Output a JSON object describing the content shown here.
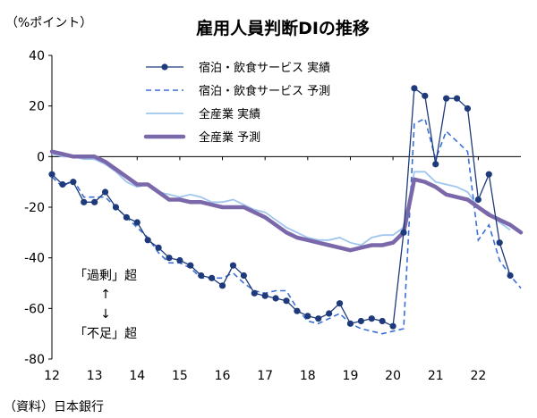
{
  "chart_data": {
    "type": "line",
    "title": "雇用人員判断DIの推移",
    "ylabel": "（%ポイント）",
    "source": "（資料）日本銀行",
    "ylim": [
      -80,
      40
    ],
    "yticks": [
      40,
      20,
      0,
      -20,
      -40,
      -60,
      -80
    ],
    "xlim": [
      2012,
      2023
    ],
    "xticks": [
      {
        "v": 2012,
        "label": "12"
      },
      {
        "v": 2013,
        "label": "13"
      },
      {
        "v": 2014,
        "label": "14"
      },
      {
        "v": 2015,
        "label": "15"
      },
      {
        "v": 2016,
        "label": "16"
      },
      {
        "v": 2017,
        "label": "17"
      },
      {
        "v": 2018,
        "label": "18"
      },
      {
        "v": 2019,
        "label": "19"
      },
      {
        "v": 2020,
        "label": "20"
      },
      {
        "v": 2021,
        "label": "21"
      },
      {
        "v": 2022,
        "label": "22"
      }
    ],
    "annotation": {
      "top": "「過剰」超",
      "arrow_up": "↑",
      "arrow_down": "↓",
      "bottom": "「不足」超"
    },
    "series": [
      {
        "name": "宿泊・飲食サービス 実績",
        "color": "#1f3a7a",
        "style": "marker",
        "x": [
          2012.0,
          2012.25,
          2012.5,
          2012.75,
          2013.0,
          2013.25,
          2013.5,
          2013.75,
          2014.0,
          2014.25,
          2014.5,
          2014.75,
          2015.0,
          2015.25,
          2015.5,
          2015.75,
          2016.0,
          2016.25,
          2016.5,
          2016.75,
          2017.0,
          2017.25,
          2017.5,
          2017.75,
          2018.0,
          2018.25,
          2018.5,
          2018.75,
          2019.0,
          2019.25,
          2019.5,
          2019.75,
          2020.0,
          2020.25,
          2020.5,
          2020.75,
          2021.0,
          2021.25,
          2021.5,
          2021.75,
          2022.0,
          2022.25,
          2022.5,
          2022.75
        ],
        "values": [
          -7,
          -11,
          -10,
          -18,
          -18,
          -14,
          -20,
          -24,
          -26,
          -33,
          -36,
          -40,
          -41,
          -43,
          -47,
          -48,
          -51,
          -43,
          -47,
          -54,
          -55,
          -56,
          -57,
          -61,
          -63,
          -64,
          -62,
          -58,
          -66,
          -65,
          -64,
          -65,
          -67,
          -30,
          27,
          24,
          -3,
          23,
          23,
          19,
          -17,
          -7,
          -34,
          -47
        ]
      },
      {
        "name": "宿泊・飲食サービス 予測",
        "color": "#3a6fd8",
        "style": "dash",
        "x": [
          2012.0,
          2012.25,
          2012.5,
          2012.75,
          2013.0,
          2013.25,
          2013.5,
          2013.75,
          2014.0,
          2014.25,
          2014.5,
          2014.75,
          2015.0,
          2015.25,
          2015.5,
          2015.75,
          2016.0,
          2016.25,
          2016.5,
          2016.75,
          2017.0,
          2017.25,
          2017.5,
          2017.75,
          2018.0,
          2018.25,
          2018.5,
          2018.75,
          2019.0,
          2019.25,
          2019.5,
          2019.75,
          2020.0,
          2020.25,
          2020.5,
          2020.75,
          2021.0,
          2021.25,
          2021.5,
          2021.75,
          2022.0,
          2022.25,
          2022.5,
          2022.75,
          2023.0
        ],
        "values": [
          -8,
          -12,
          -9,
          -16,
          -16,
          -16,
          -20,
          -24,
          -28,
          -32,
          -38,
          -42,
          -42,
          -44,
          -48,
          -48,
          -48,
          -46,
          -50,
          -53,
          -54,
          -53,
          -53,
          -60,
          -65,
          -66,
          -64,
          -62,
          -66,
          -68,
          -69,
          -70,
          -69,
          -68,
          13,
          15,
          -1,
          10,
          6,
          2,
          -33,
          -27,
          -41,
          -47,
          -52
        ]
      },
      {
        "name": "全産業 実績",
        "color": "#9fc6ee",
        "style": "thin",
        "x": [
          2012.0,
          2012.25,
          2012.5,
          2012.75,
          2013.0,
          2013.25,
          2013.5,
          2013.75,
          2014.0,
          2014.25,
          2014.5,
          2014.75,
          2015.0,
          2015.25,
          2015.5,
          2015.75,
          2016.0,
          2016.25,
          2016.5,
          2016.75,
          2017.0,
          2017.25,
          2017.5,
          2017.75,
          2018.0,
          2018.25,
          2018.5,
          2018.75,
          2019.0,
          2019.25,
          2019.5,
          2019.75,
          2020.0,
          2020.25,
          2020.5,
          2020.75,
          2021.0,
          2021.25,
          2021.5,
          2021.75,
          2022.0,
          2022.25,
          2022.5,
          2022.75
        ],
        "values": [
          1,
          0,
          0,
          -1,
          -1,
          -3,
          -6,
          -10,
          -12,
          -11,
          -14,
          -15,
          -16,
          -15,
          -16,
          -18,
          -18,
          -17,
          -19,
          -21,
          -22,
          -25,
          -28,
          -30,
          -32,
          -33,
          -33,
          -32,
          -34,
          -35,
          -32,
          -31,
          -31,
          -28,
          -6,
          -6,
          -10,
          -11,
          -12,
          -14,
          -20,
          -22,
          -26,
          -29
        ]
      },
      {
        "name": "全産業 予測",
        "color": "#7b68aa",
        "style": "thick",
        "x": [
          2012.0,
          2012.25,
          2012.5,
          2012.75,
          2013.0,
          2013.25,
          2013.5,
          2013.75,
          2014.0,
          2014.25,
          2014.5,
          2014.75,
          2015.0,
          2015.25,
          2015.5,
          2015.75,
          2016.0,
          2016.25,
          2016.5,
          2016.75,
          2017.0,
          2017.25,
          2017.5,
          2017.75,
          2018.0,
          2018.25,
          2018.5,
          2018.75,
          2019.0,
          2019.25,
          2019.5,
          2019.75,
          2020.0,
          2020.25,
          2020.5,
          2020.75,
          2021.0,
          2021.25,
          2021.5,
          2021.75,
          2022.0,
          2022.25,
          2022.5,
          2022.75,
          2023.0
        ],
        "values": [
          2,
          1,
          0,
          0,
          0,
          -2,
          -5,
          -8,
          -11,
          -11,
          -14,
          -17,
          -17,
          -18,
          -18,
          -19,
          -20,
          -20,
          -20,
          -22,
          -24,
          -27,
          -30,
          -32,
          -33,
          -34,
          -35,
          -36,
          -37,
          -36,
          -35,
          -35,
          -34,
          -30,
          -9,
          -10,
          -12,
          -15,
          -16,
          -17,
          -20,
          -23,
          -25,
          -27,
          -30
        ]
      }
    ]
  }
}
